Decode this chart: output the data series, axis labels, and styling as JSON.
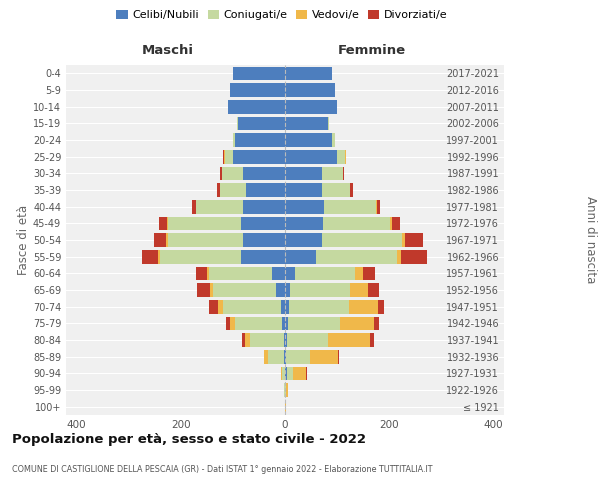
{
  "age_groups": [
    "100+",
    "95-99",
    "90-94",
    "85-89",
    "80-84",
    "75-79",
    "70-74",
    "65-69",
    "60-64",
    "55-59",
    "50-54",
    "45-49",
    "40-44",
    "35-39",
    "30-34",
    "25-29",
    "20-24",
    "15-19",
    "10-14",
    "5-9",
    "0-4"
  ],
  "birth_years": [
    "≤ 1921",
    "1922-1926",
    "1927-1931",
    "1932-1936",
    "1937-1941",
    "1942-1946",
    "1947-1951",
    "1952-1956",
    "1957-1961",
    "1962-1966",
    "1967-1971",
    "1972-1976",
    "1977-1981",
    "1982-1986",
    "1987-1991",
    "1992-1996",
    "1997-2001",
    "2002-2006",
    "2007-2011",
    "2012-2016",
    "2017-2021"
  ],
  "males": {
    "celibi": [
      0,
      0,
      0,
      2,
      2,
      5,
      8,
      18,
      25,
      85,
      80,
      85,
      80,
      75,
      80,
      100,
      95,
      90,
      110,
      105,
      100
    ],
    "coniugati": [
      0,
      1,
      5,
      30,
      65,
      90,
      110,
      120,
      120,
      155,
      145,
      140,
      90,
      50,
      40,
      15,
      5,
      2,
      0,
      0,
      0
    ],
    "vedovi": [
      0,
      0,
      3,
      8,
      10,
      10,
      10,
      5,
      4,
      4,
      4,
      2,
      0,
      0,
      0,
      2,
      0,
      0,
      0,
      0,
      0
    ],
    "divorziati": [
      0,
      0,
      0,
      0,
      5,
      8,
      18,
      25,
      22,
      30,
      22,
      15,
      8,
      5,
      5,
      2,
      0,
      0,
      0,
      0,
      0
    ]
  },
  "females": {
    "nubili": [
      0,
      0,
      3,
      2,
      3,
      5,
      8,
      10,
      20,
      60,
      70,
      72,
      75,
      70,
      70,
      100,
      90,
      82,
      100,
      95,
      90
    ],
    "coniugate": [
      0,
      2,
      12,
      45,
      80,
      100,
      115,
      115,
      115,
      155,
      155,
      130,
      100,
      55,
      42,
      15,
      5,
      2,
      0,
      0,
      0
    ],
    "vedove": [
      1,
      3,
      25,
      55,
      80,
      65,
      55,
      35,
      15,
      8,
      5,
      4,
      2,
      0,
      0,
      2,
      0,
      0,
      0,
      0,
      0
    ],
    "divorziate": [
      0,
      0,
      2,
      2,
      8,
      10,
      12,
      20,
      22,
      50,
      35,
      15,
      5,
      5,
      2,
      0,
      0,
      0,
      0,
      0,
      0
    ]
  },
  "colors": {
    "celibi_nubili": "#4d7ebe",
    "coniugati": "#c5d9a0",
    "vedovi": "#f0b84a",
    "divorziati": "#c0392b"
  },
  "title": "Popolazione per età, sesso e stato civile - 2022",
  "subtitle": "COMUNE DI CASTIGLIONE DELLA PESCAIA (GR) - Dati ISTAT 1° gennaio 2022 - Elaborazione TUTTITALIA.IT",
  "xlabel_left": "Maschi",
  "xlabel_right": "Femmine",
  "ylabel_left": "Fasce di età",
  "ylabel_right": "Anni di nascita",
  "xlim": 420,
  "bg_color": "#f0f0f0",
  "legend_labels": [
    "Celibi/Nubili",
    "Coniugati/e",
    "Vedovi/e",
    "Divorziati/e"
  ]
}
